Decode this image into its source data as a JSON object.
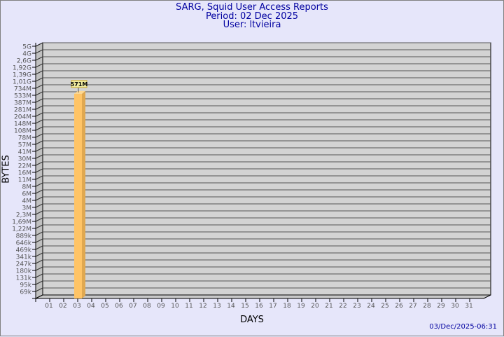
{
  "header": {
    "title": "SARG, Squid User Access Reports",
    "period": "Period: 02 Dec 2025",
    "user": "User: ltvieira"
  },
  "footer": {
    "timestamp": "03/Dec/2025-06:31"
  },
  "colors": {
    "background": "#e6e6fa",
    "plot": "#d3d3d3",
    "bar": "#ffc466",
    "title": "#0000a0"
  },
  "chart_data": {
    "type": "bar",
    "xlabel": "DAYS",
    "ylabel": "BYTES",
    "y_scale": "log",
    "grid": true,
    "categories": [
      "01",
      "02",
      "03",
      "04",
      "05",
      "06",
      "07",
      "08",
      "09",
      "10",
      "11",
      "12",
      "13",
      "14",
      "15",
      "16",
      "17",
      "18",
      "19",
      "20",
      "21",
      "22",
      "23",
      "24",
      "25",
      "26",
      "27",
      "28",
      "29",
      "30",
      "31"
    ],
    "values": [
      null,
      571000000,
      null,
      null,
      null,
      null,
      null,
      null,
      null,
      null,
      null,
      null,
      null,
      null,
      null,
      null,
      null,
      null,
      null,
      null,
      null,
      null,
      null,
      null,
      null,
      null,
      null,
      null,
      null,
      null,
      null
    ],
    "data_labels": {
      "02": "571M"
    },
    "y_tick_labels": [
      "5G",
      "4G",
      "2,6G",
      "1,92G",
      "1,39G",
      "1,01G",
      "734M",
      "533M",
      "387M",
      "281M",
      "204M",
      "148M",
      "108M",
      "78M",
      "57M",
      "41M",
      "30M",
      "22M",
      "16M",
      "11M",
      "8M",
      "6M",
      "4M",
      "3M",
      "2,3M",
      "1,69M",
      "1,22M",
      "889k",
      "646k",
      "469k",
      "341k",
      "247k",
      "180k",
      "131k",
      "95k",
      "69k"
    ]
  }
}
